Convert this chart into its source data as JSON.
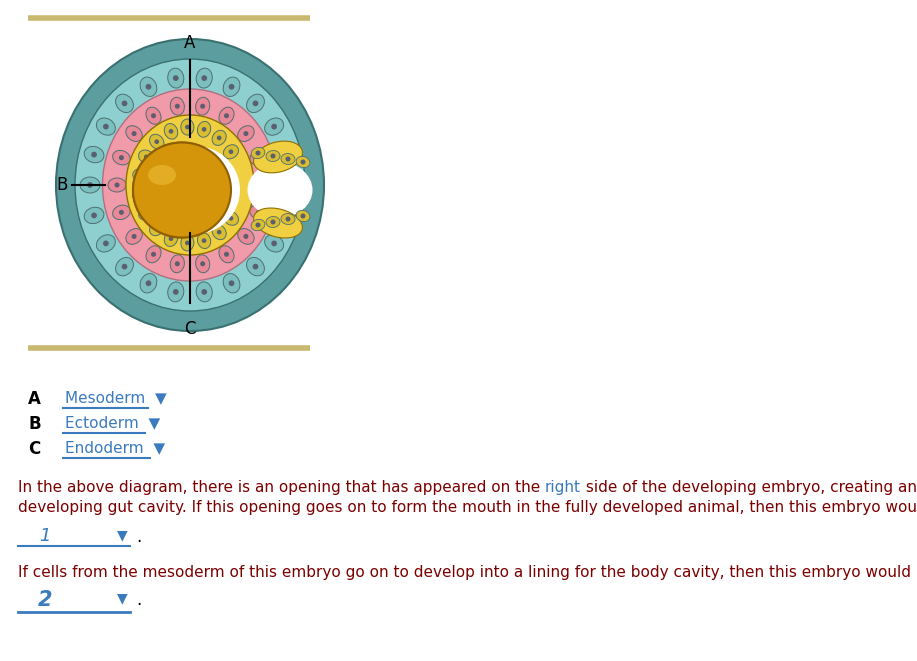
{
  "bg_color": "#ffffff",
  "separator_color": "#c8b870",
  "outer_layer_color": "#5c9ea0",
  "ectoderm_color": "#8ecfcf",
  "mesoderm_color": "#f09aaa",
  "endoderm_color": "#f0d040",
  "yolk_color": "#d4950a",
  "yolk_highlight": "#e8b830",
  "cell_border_color": "#507070",
  "cell_fill_ecto": "#7bbfbf",
  "cell_fill_meso": "#e88898",
  "cell_fill_endo": "#d8be30",
  "cell_dot_color": "#5a6070",
  "dropdown_color": "#3a7abf",
  "text_dark_red": "#7b0000",
  "text_blue": "#3a7abf",
  "label_A": "A",
  "label_B": "B",
  "label_C": "C",
  "answer_A": "Mesoderm",
  "answer_B": "Ectoderm",
  "answer_C": "Endoderm",
  "answer1": "1",
  "answer2": "2"
}
